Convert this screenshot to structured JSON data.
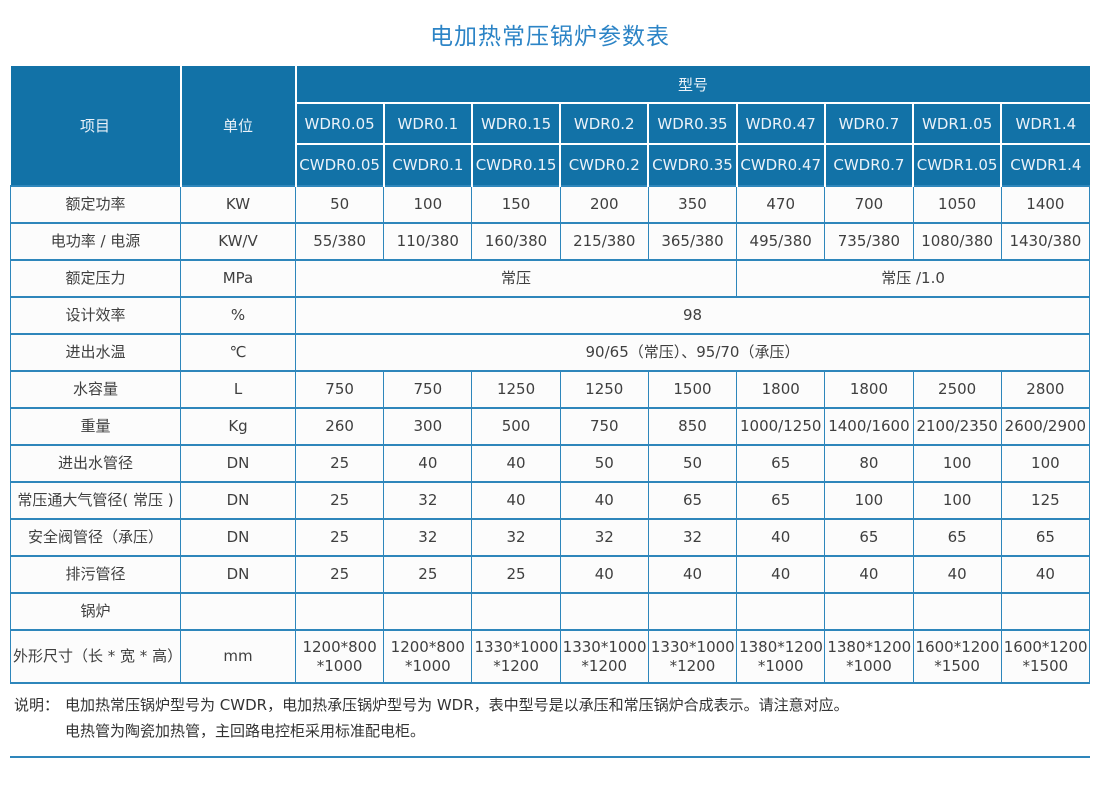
{
  "title": "电加热常压锅炉参数表",
  "colors": {
    "header_bg": "#1272a7",
    "header_text": "#eaf2f9",
    "grid": "#2e86bb",
    "title_color": "#2c84c6",
    "text": "#3f3f3f",
    "cell_bg": "#fcfcfc",
    "note_text": "#333333"
  },
  "table": {
    "header": {
      "item_label": "项目",
      "unit_label": "单位",
      "model_label": "型号",
      "models_wdr": [
        "WDR0.05",
        "WDR0.1",
        "WDR0.15",
        "WDR0.2",
        "WDR0.35",
        "WDR0.47",
        "WDR0.7",
        "WDR1.05",
        "WDR1.4"
      ],
      "models_cwdr": [
        "CWDR0.05",
        "CWDR0.1",
        "CWDR0.15",
        "CWDR0.2",
        "CWDR0.35",
        "CWDR0.47",
        "CWDR0.7",
        "CWDR1.05",
        "CWDR1.4"
      ]
    },
    "rows": [
      {
        "label": "额定功率",
        "unit": "KW",
        "cells": [
          "50",
          "100",
          "150",
          "200",
          "350",
          "470",
          "700",
          "1050",
          "1400"
        ]
      },
      {
        "label": "电功率 / 电源",
        "unit": "KW/V",
        "cells": [
          "55/380",
          "110/380",
          "160/380",
          "215/380",
          "365/380",
          "495/380",
          "735/380",
          "1080/380",
          "1430/380"
        ]
      },
      {
        "label": "额定压力",
        "unit": "MPa",
        "spans": [
          {
            "text": "常压",
            "cols": 5
          },
          {
            "text": "常压 /1.0",
            "cols": 4
          }
        ]
      },
      {
        "label": "设计效率",
        "unit": "%",
        "spans": [
          {
            "text": "98",
            "cols": 9
          }
        ]
      },
      {
        "label": "进出水温",
        "unit": "℃",
        "spans": [
          {
            "text": "90/65（常压）、95/70（承压）",
            "cols": 9
          }
        ]
      },
      {
        "label": "水容量",
        "unit": "L",
        "cells": [
          "750",
          "750",
          "1250",
          "1250",
          "1500",
          "1800",
          "1800",
          "2500",
          "2800"
        ]
      },
      {
        "label": "重量",
        "unit": "Kg",
        "cells": [
          "260",
          "300",
          "500",
          "750",
          "850",
          "1000/1250",
          "1400/1600",
          "2100/2350",
          "2600/2900"
        ]
      },
      {
        "label": "进出水管径",
        "unit": "DN",
        "cells": [
          "25",
          "40",
          "40",
          "50",
          "50",
          "65",
          "80",
          "100",
          "100"
        ]
      },
      {
        "label": "常压通大气管径( 常压 )",
        "unit": "DN",
        "cells": [
          "25",
          "32",
          "40",
          "40",
          "65",
          "65",
          "100",
          "100",
          "125"
        ]
      },
      {
        "label": "安全阀管径（承压）",
        "unit": "DN",
        "cells": [
          "25",
          "32",
          "32",
          "32",
          "32",
          "40",
          "65",
          "65",
          "65"
        ]
      },
      {
        "label": "排污管径",
        "unit": "DN",
        "cells": [
          "25",
          "25",
          "25",
          "40",
          "40",
          "40",
          "40",
          "40",
          "40"
        ]
      },
      {
        "label": "锅炉",
        "unit": "",
        "cells": [
          "",
          "",
          "",
          "",
          "",
          "",
          "",
          "",
          ""
        ]
      },
      {
        "label": "外形尺寸（长 * 宽 * 高）",
        "unit": "mm",
        "tall": true,
        "cells": [
          "1200*800\n*1000",
          "1200*800\n*1000",
          "1330*1000\n*1200",
          "1330*1000\n*1200",
          "1330*1000\n*1200",
          "1380*1200\n*1000",
          "1380*1200\n*1000",
          "1600*1200\n*1500",
          "1600*1200\n*1500"
        ]
      }
    ]
  },
  "note": {
    "prefix": "说明：",
    "line1": "电加热常压锅炉型号为 CWDR，电加热承压锅炉型号为 WDR，表中型号是以承压和常压锅炉合成表示。请注意对应。",
    "line2": "电热管为陶瓷加热管，主回路电控柜采用标准配电柜。"
  }
}
